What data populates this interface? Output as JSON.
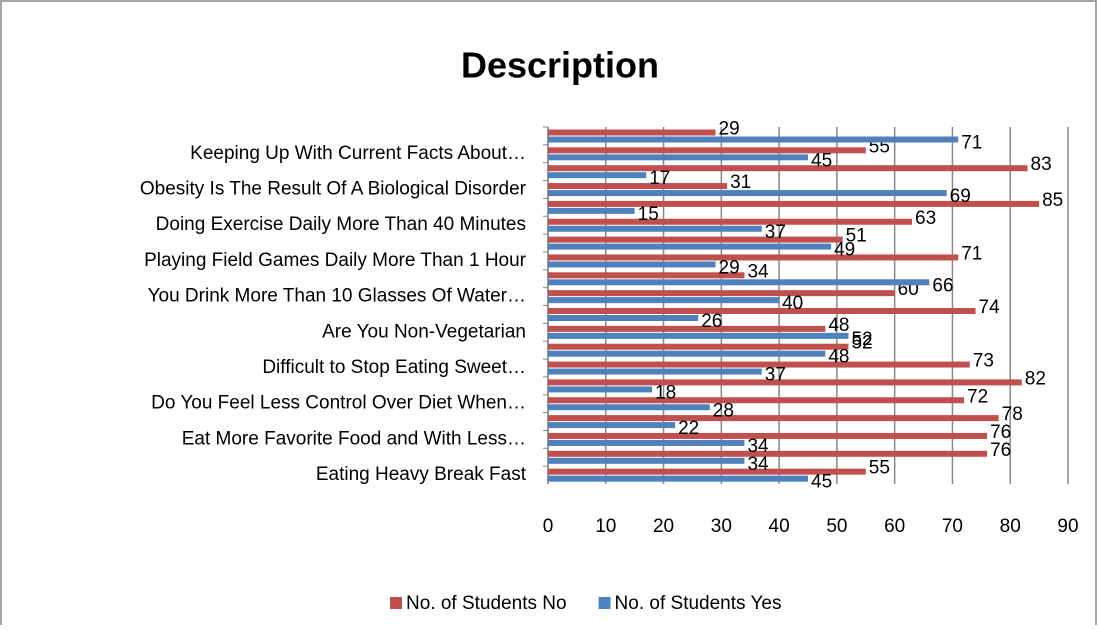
{
  "chart_data": {
    "type": "hbar",
    "title": "Description",
    "categories": [
      "Eating Heavy Break Fast",
      null,
      "Eat More Favorite Food and With Less…",
      null,
      "Do You Feel Less Control Over Diet When…",
      null,
      "Difficult to Stop Eating Sweet…",
      null,
      "Are You Non-Vegetarian",
      null,
      "You Drink More Than 10 Glasses Of Water…",
      null,
      "Playing Field Games Daily More Than 1 Hour",
      null,
      "Doing Exercise Daily More Than 40 Minutes",
      null,
      "Obesity Is The Result Of A Biological Disorder",
      null,
      "Keeping Up With Current Facts About…",
      null
    ],
    "series": [
      {
        "name": "No. of Students No",
        "color": "#c0504d",
        "values": [
          55,
          76,
          76,
          78,
          72,
          82,
          73,
          52,
          48,
          74,
          60,
          34,
          71,
          51,
          63,
          85,
          31,
          83,
          55,
          29
        ]
      },
      {
        "name": "No. of Students Yes",
        "color": "#4f81bd",
        "values": [
          45,
          34,
          34,
          22,
          28,
          18,
          37,
          48,
          52,
          26,
          40,
          66,
          29,
          49,
          37,
          15,
          69,
          17,
          45,
          71
        ]
      }
    ],
    "xlim": [
      0,
      90
    ],
    "xticks": [
      0,
      10,
      20,
      30,
      40,
      50,
      60,
      70,
      80,
      90
    ],
    "grid": true,
    "legend": "bottom"
  }
}
